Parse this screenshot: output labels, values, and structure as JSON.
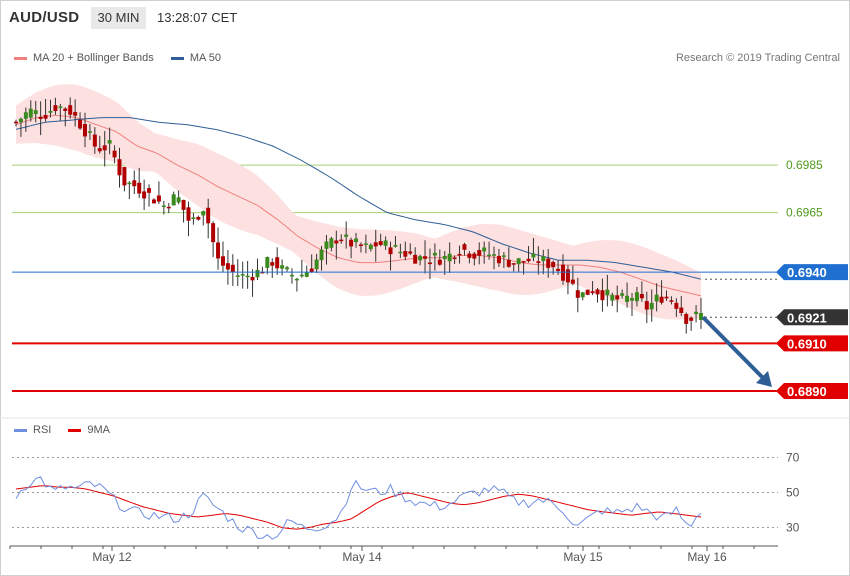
{
  "header": {
    "symbol": "AUD/USD",
    "timeframe": "30 MIN",
    "clock": "13:28:07 CET"
  },
  "legend_price": [
    {
      "label": "MA 20 + Bollinger Bands",
      "color": "#f08080"
    },
    {
      "label": "MA 50",
      "color": "#2e5e96"
    }
  ],
  "legend_rsi": [
    {
      "label": "RSI",
      "color": "#6f8fe0"
    },
    {
      "label": "9MA",
      "color": "#e00000"
    }
  ],
  "copyright": "Research © 2019 Trading Central",
  "chart_data": [
    {
      "type": "candlestick",
      "title": "AUD/USD",
      "x_labels": [
        "May 12",
        "May 14",
        "May 15",
        "May 16"
      ],
      "y_range": [
        0.6882,
        0.7025
      ],
      "grid": "horizontal, light green",
      "gridlines": [
        0.6985,
        0.6965
      ],
      "price_levels": [
        {
          "value": 0.694,
          "label": "0.6940",
          "style": "blue line",
          "color": "#1f6fd0"
        },
        {
          "value": 0.6921,
          "label": "0.6921",
          "style": "current price, dark",
          "color": "#333333"
        },
        {
          "value": 0.691,
          "label": "0.6910",
          "style": "red line",
          "color": "#e00000"
        },
        {
          "value": 0.689,
          "label": "0.6890",
          "style": "red line",
          "color": "#e00000"
        }
      ],
      "projection_arrow": {
        "from": 0.6921,
        "to": 0.689,
        "color": "#2e5e96"
      },
      "series": [
        {
          "name": "Close",
          "keypoints": [
            0.7003,
            0.7008,
            0.7006,
            0.701,
            0.7008,
            0.7001,
            0.6992,
            0.6993,
            0.6978,
            0.6976,
            0.6972,
            0.6968,
            0.6972,
            0.696,
            0.6968,
            0.6945,
            0.694,
            0.6938,
            0.694,
            0.6945,
            0.694,
            0.6938,
            0.6942,
            0.695,
            0.6955,
            0.6952,
            0.695,
            0.6952,
            0.695,
            0.6948,
            0.6946,
            0.6946,
            0.6946,
            0.695,
            0.6948,
            0.6948,
            0.6946,
            0.6944,
            0.6945,
            0.6945,
            0.6943,
            0.6938,
            0.693,
            0.6933,
            0.693,
            0.6928,
            0.693,
            0.6925,
            0.693,
            0.6928,
            0.692,
            0.6922
          ]
        },
        {
          "name": "MA 20",
          "keypoints": [
            0.7002,
            0.7005,
            0.7006,
            0.7005,
            0.7002,
            0.6999,
            0.6993,
            0.699,
            0.6985,
            0.6981,
            0.6976,
            0.6972,
            0.6968,
            0.6962,
            0.6955,
            0.695,
            0.6946,
            0.6944,
            0.6944,
            0.6945,
            0.6946,
            0.6946,
            0.6947,
            0.6947,
            0.6946,
            0.6944,
            0.6943,
            0.6943,
            0.6943,
            0.6942,
            0.694,
            0.6937,
            0.6934,
            0.6932,
            0.693
          ]
        },
        {
          "name": "MA 50",
          "keypoints": [
            0.7,
            0.7003,
            0.7004,
            0.7005,
            0.7005,
            0.7003,
            0.7002,
            0.7,
            0.6997,
            0.6993,
            0.6987,
            0.698,
            0.6972,
            0.6965,
            0.6962,
            0.696,
            0.6957,
            0.6952,
            0.6948,
            0.6945,
            0.6945,
            0.6944,
            0.6942,
            0.694,
            0.6937
          ]
        }
      ]
    },
    {
      "type": "line",
      "title": "RSI",
      "y_range": [
        20,
        80
      ],
      "y_ticks": [
        70,
        50,
        30
      ],
      "series": [
        {
          "name": "RSI",
          "keypoints": [
            48,
            56,
            58,
            50,
            53,
            52,
            55,
            52,
            45,
            40,
            38,
            37,
            36,
            35,
            38,
            48,
            42,
            36,
            30,
            28,
            25,
            26,
            34,
            30,
            30,
            32,
            37,
            55,
            52,
            50,
            52,
            48,
            45,
            43,
            42,
            44,
            48,
            50,
            52,
            50,
            45,
            44,
            46,
            44,
            40,
            30,
            35,
            40,
            38,
            40,
            42,
            38,
            35,
            40,
            30,
            40
          ]
        },
        {
          "name": "9MA",
          "keypoints": [
            52,
            53,
            54,
            53,
            53,
            52,
            50,
            48,
            45,
            42,
            40,
            38,
            37,
            36,
            37,
            38,
            37,
            35,
            33,
            30,
            29,
            30,
            32,
            33,
            35,
            40,
            45,
            48,
            50,
            48,
            46,
            44,
            43,
            44,
            46,
            48,
            49,
            48,
            46,
            44,
            42,
            40,
            39,
            38,
            37,
            38,
            39,
            38,
            37,
            36
          ]
        }
      ]
    }
  ]
}
